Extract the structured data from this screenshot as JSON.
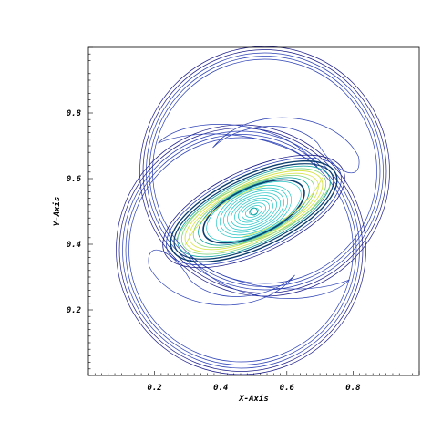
{
  "chart_data": {
    "type": "contour",
    "xlabel": "X-Axis",
    "ylabel": "Y-Axis",
    "xlim": [
      0.0,
      1.0
    ],
    "ylim": [
      0.0,
      1.0
    ],
    "x_ticks": [
      0.2,
      0.4,
      0.6,
      0.8
    ],
    "x_tick_labels": [
      "0.2",
      "0.4",
      "0.6",
      "0.8"
    ],
    "y_ticks": [
      0.2,
      0.4,
      0.6,
      0.8
    ],
    "y_tick_labels": [
      "0.2",
      "0.4",
      "0.6",
      "0.8"
    ],
    "minor_ticks_per_major": 10,
    "grid": false,
    "legend": "none",
    "vortex_center": [
      0.5,
      0.5
    ],
    "vortex_tilt_deg": 25,
    "palette": {
      "frame": "#000000",
      "outer": "#1c1c8a",
      "mid": "#2a3fb5",
      "inner_dark": "#0b3d6e",
      "teal": "#009b9b",
      "cyan": "#22c4c4",
      "green": "#7ed37e",
      "yellow": "#d8e44a"
    }
  }
}
